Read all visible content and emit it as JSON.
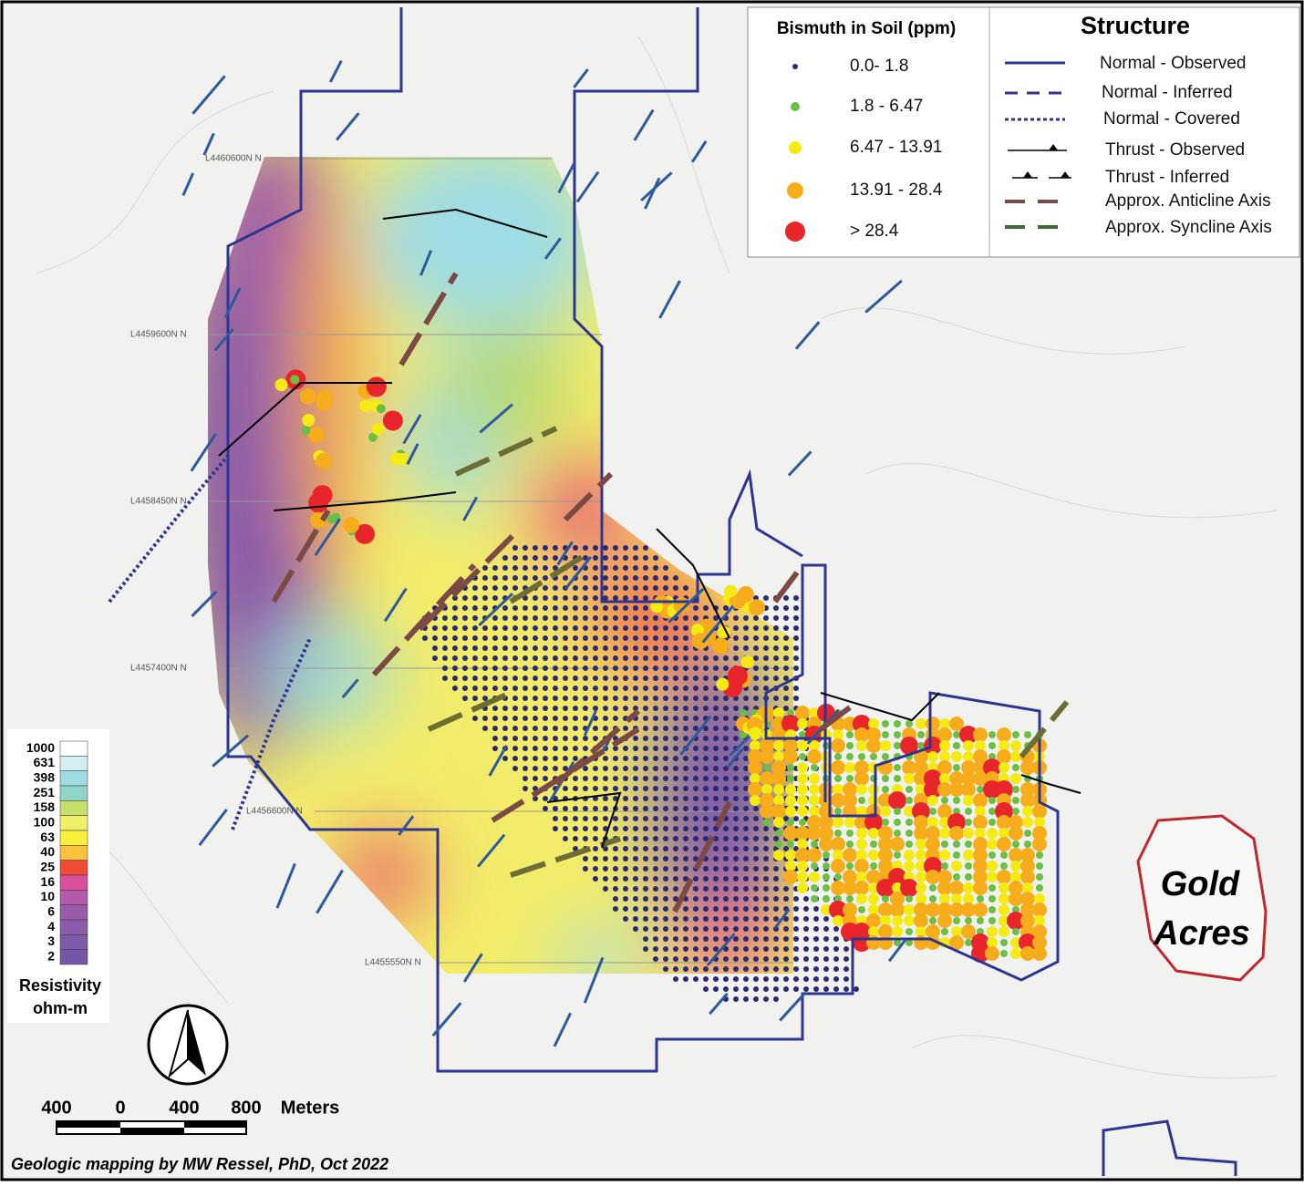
{
  "soil_legend": {
    "title": "Bismuth in Soil (ppm)",
    "classes": [
      {
        "label": "0.0- 1.8",
        "color": "#2a2a72"
      },
      {
        "label": "1.8 - 6.47",
        "color": "#6cbf45"
      },
      {
        "label": "6.47 - 13.91",
        "color": "#f5ea14"
      },
      {
        "label": "13.91 - 28.4",
        "color": "#f7ac1b"
      },
      {
        "label": "> 28.4",
        "color": "#e8252a"
      }
    ]
  },
  "structure_legend": {
    "title": "Structure",
    "items": [
      "Normal - Observed",
      "Normal - Inferred",
      "Normal - Covered",
      "Thrust - Observed",
      "Thrust - Inferred",
      "Approx. Anticline Axis",
      "Approx. Syncline Axis"
    ]
  },
  "grid_lines": [
    "L4460600N N",
    "L4459600N N",
    "L4458450N N",
    "L4457400N N",
    "L4456600N N",
    "L4455550N N"
  ],
  "resistivity_legend": {
    "ticks": [
      1000,
      631,
      398,
      251,
      158,
      100,
      63,
      40,
      25,
      16,
      10,
      6,
      4,
      3,
      2
    ],
    "colors": [
      "#ffffff",
      "#d4eef2",
      "#9fdbe3",
      "#8fd6c6",
      "#c5e06a",
      "#eef06a",
      "#f9ef3a",
      "#f9c23b",
      "#ef4b35",
      "#d94f9a",
      "#b55aa8",
      "#9a5bab",
      "#8a5caa",
      "#7e5ba8",
      "#7657a6"
    ],
    "title": "Resistivity",
    "unit": "ohm-m"
  },
  "gold_acres": [
    "Gold",
    "Acres"
  ],
  "scale_bar": {
    "labels": [
      "400",
      "0",
      "400",
      "800"
    ],
    "unit": "Meters"
  },
  "credit": "Geologic mapping by MW Ressel, PhD, Oct 2022"
}
